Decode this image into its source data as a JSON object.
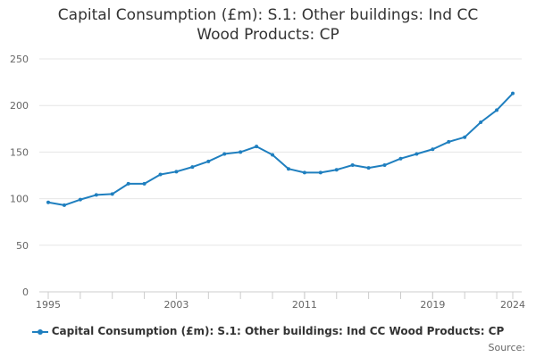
{
  "chart_data": {
    "type": "line",
    "title_line1": "Capital Consumption (£m): S.1: Other buildings: Ind CC",
    "title_line2": "Wood Products: CP",
    "xlabel": "",
    "ylabel": "",
    "ylim": [
      0,
      250
    ],
    "yticks": [
      0,
      50,
      100,
      150,
      200,
      250
    ],
    "xlim": [
      1995,
      2024
    ],
    "xticks": [
      1995,
      2003,
      2011,
      2019,
      2024
    ],
    "grid": true,
    "legend_position": "bottom",
    "series": [
      {
        "name": "Capital Consumption (£m): S.1: Other buildings: Ind CC Wood Products: CP",
        "color": "#1f7fbf",
        "x": [
          1995,
          1996,
          1997,
          1998,
          1999,
          2000,
          2001,
          2002,
          2003,
          2004,
          2005,
          2006,
          2007,
          2008,
          2009,
          2010,
          2011,
          2012,
          2013,
          2014,
          2015,
          2016,
          2017,
          2018,
          2019,
          2020,
          2021,
          2022,
          2023,
          2024
        ],
        "values": [
          96,
          93,
          99,
          104,
          105,
          116,
          116,
          126,
          129,
          134,
          140,
          148,
          150,
          156,
          147,
          132,
          128,
          128,
          131,
          136,
          133,
          136,
          143,
          148,
          153,
          161,
          166,
          182,
          195,
          213
        ]
      }
    ]
  },
  "legend_label": "Capital Consumption (£m): S.1: Other buildings: Ind CC Wood Products: CP",
  "source_label": "Source:"
}
